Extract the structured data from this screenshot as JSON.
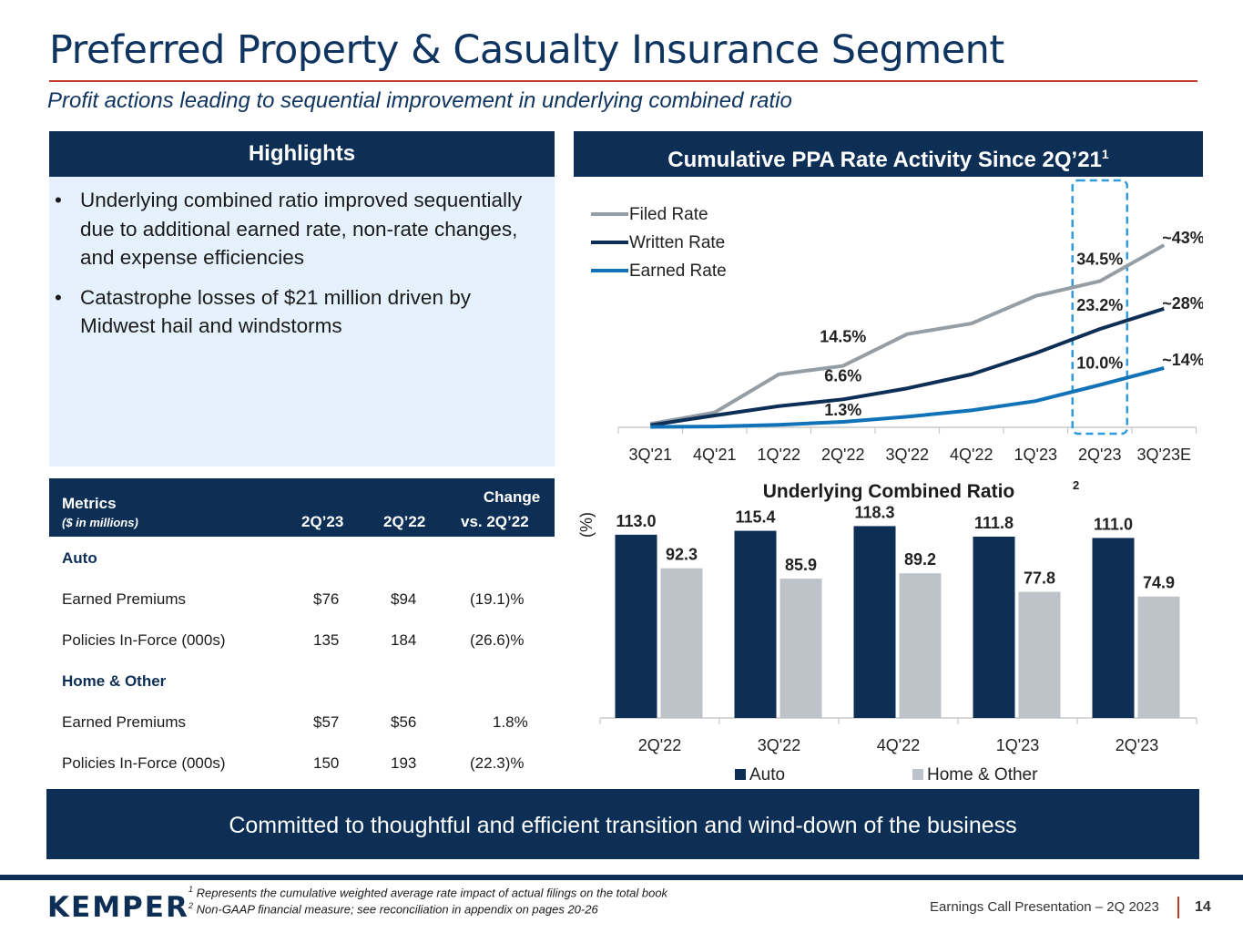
{
  "header": {
    "title": "Preferred Property & Casualty Insurance Segment",
    "subtitle": "Profit actions leading to sequential improvement in underlying combined ratio"
  },
  "highlights": {
    "title": "Highlights",
    "bullets": [
      "Underlying combined ratio improved sequentially due to additional earned rate, non-rate changes, and expense efficiencies",
      "Catastrophe losses of $21 million driven by Midwest hail and windstorms"
    ]
  },
  "metrics_table": {
    "header": {
      "metrics": "Metrics",
      "units": "($ in millions)",
      "col1": "2Q’23",
      "col2": "2Q’22",
      "change_line1": "Change",
      "change_line2": "vs. 2Q’22"
    },
    "sections": [
      {
        "name": "Auto",
        "rows": [
          {
            "label": "Earned Premiums",
            "v1": "$76",
            "v2": "$94",
            "change": "(19.1)%"
          },
          {
            "label": "Policies In-Force (000s)",
            "v1": "135",
            "v2": "184",
            "change": "(26.6)%"
          }
        ]
      },
      {
        "name": "Home & Other",
        "rows": [
          {
            "label": "Earned Premiums",
            "v1": "$57",
            "v2": "$56",
            "change": "1.8%"
          },
          {
            "label": "Policies In-Force (000s)",
            "v1": "150",
            "v2": "193",
            "change": "(22.3)%"
          }
        ]
      }
    ]
  },
  "ppa_header": {
    "title": "Cumulative PPA Rate Activity Since 2Q’21",
    "sup": "1"
  },
  "colors": {
    "navy": "#0d2f55",
    "filed": "#969ea5",
    "written": "#0d2f55",
    "earned": "#1272b8",
    "home": "#bec3c9",
    "dash": "#2e9be0"
  },
  "chart_data": [
    {
      "type": "line",
      "title": "Cumulative PPA Rate Activity Since 2Q’21",
      "categories": [
        "3Q'21",
        "4Q'21",
        "1Q'22",
        "2Q'22",
        "3Q'22",
        "4Q'22",
        "1Q'23",
        "2Q'23",
        "3Q'23E"
      ],
      "ylim": [
        0,
        45
      ],
      "legend_position": "top-left",
      "series": [
        {
          "name": "Filed Rate",
          "values": [
            0.8,
            3.5,
            12.5,
            14.5,
            22.0,
            24.5,
            31.0,
            34.5,
            43.0
          ]
        },
        {
          "name": "Written Rate",
          "values": [
            0.5,
            2.8,
            5.0,
            6.6,
            9.2,
            12.5,
            17.5,
            23.2,
            28.0
          ]
        },
        {
          "name": "Earned Rate",
          "values": [
            0.1,
            0.2,
            0.6,
            1.3,
            2.5,
            4.0,
            6.2,
            10.0,
            14.0
          ]
        }
      ],
      "point_labels": [
        {
          "series": "Filed Rate",
          "category": "2Q'22",
          "text": "14.5%"
        },
        {
          "series": "Written Rate",
          "category": "2Q'22",
          "text": "6.6%"
        },
        {
          "series": "Earned Rate",
          "category": "2Q'22",
          "text": "1.3%"
        },
        {
          "series": "Filed Rate",
          "category": "2Q'23",
          "text": "34.5%"
        },
        {
          "series": "Written Rate",
          "category": "2Q'23",
          "text": "23.2%"
        },
        {
          "series": "Earned Rate",
          "category": "2Q'23",
          "text": "10.0%"
        },
        {
          "series": "Filed Rate",
          "category": "3Q'23E",
          "text": "~43%"
        },
        {
          "series": "Written Rate",
          "category": "3Q'23E",
          "text": "~28%"
        },
        {
          "series": "Earned Rate",
          "category": "3Q'23E",
          "text": "~14%"
        }
      ],
      "highlight_category": "2Q'23"
    },
    {
      "type": "bar",
      "title": "Underlying Combined Ratio",
      "title_sup": "2",
      "ylabel": "(%)",
      "categories": [
        "2Q'22",
        "3Q'22",
        "4Q'22",
        "1Q'23",
        "2Q'23"
      ],
      "ylim": [
        0,
        125
      ],
      "legend_position": "bottom",
      "series": [
        {
          "name": "Auto",
          "values": [
            113.0,
            115.4,
            118.3,
            111.8,
            111.0
          ],
          "labels": [
            "113.0",
            "115.4",
            "118.3",
            "111.8",
            "111.0"
          ]
        },
        {
          "name": "Home & Other",
          "values": [
            92.3,
            85.9,
            89.2,
            77.8,
            74.9
          ],
          "labels": [
            "92.3",
            "85.9",
            "89.2",
            "77.8",
            "74.9"
          ]
        }
      ]
    }
  ],
  "banner": {
    "text": "Committed to thoughtful and efficient transition and wind-down of the business"
  },
  "footer": {
    "logo": "KEMPER",
    "footnote1_sup": "1",
    "footnote1": "Represents the cumulative weighted average rate impact of actual filings on the total book",
    "footnote2_sup": "2",
    "footnote2": "Non-GAAP financial measure; see reconciliation in appendix on pages 20-26",
    "label": "Earnings Call Presentation – 2Q 2023",
    "page": "14"
  }
}
